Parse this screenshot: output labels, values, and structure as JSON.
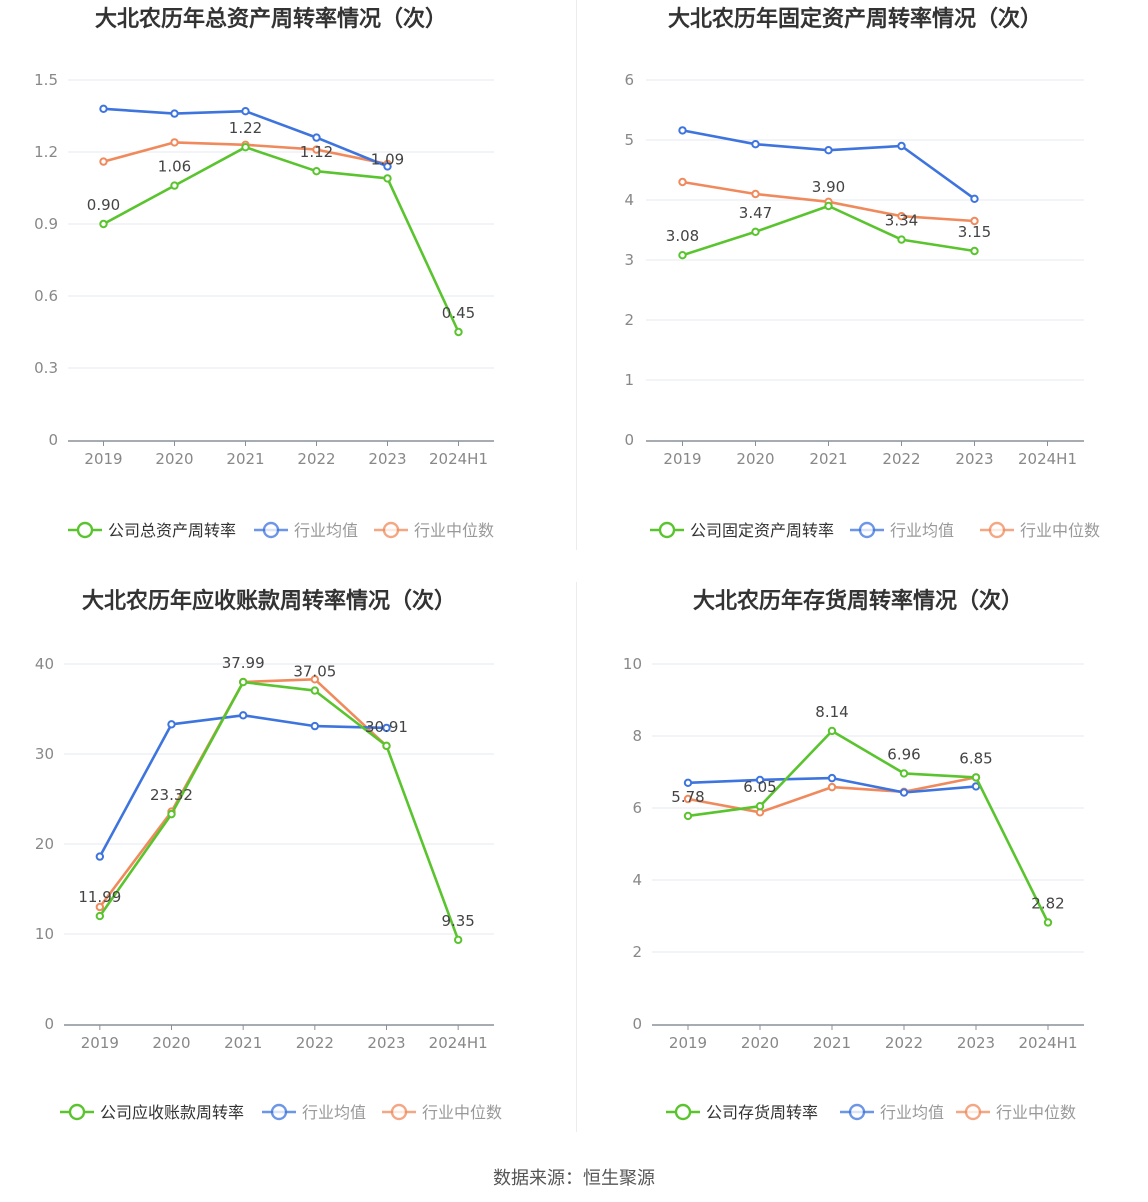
{
  "colors": {
    "company": "#5ac42e",
    "avg": "#3e74de",
    "median": "#f08a5d",
    "grid": "#e6e9f2",
    "axis": "#8a8f99",
    "tick": "#888888",
    "title": "#333333",
    "label": "#444444"
  },
  "chart_data": [
    {
      "type": "line",
      "title": "大北农历年总资产周转率情况（次）",
      "categories": [
        "2019",
        "2020",
        "2021",
        "2022",
        "2023",
        "2024H1"
      ],
      "yticks": [
        "0",
        "0.3",
        "0.6",
        "0.9",
        "1.2",
        "1.5"
      ],
      "ylim": [
        0,
        1.5
      ],
      "series": [
        {
          "name": "公司总资产周转率",
          "role": "company",
          "values": [
            0.9,
            1.06,
            1.22,
            1.12,
            1.09,
            0.45
          ],
          "labels": [
            "0.90",
            "1.06",
            "1.22",
            "1.12",
            "1.09",
            "0.45"
          ]
        },
        {
          "name": "行业均值",
          "role": "avg",
          "values": [
            1.38,
            1.36,
            1.37,
            1.26,
            1.14,
            null
          ]
        },
        {
          "name": "行业中位数",
          "role": "median",
          "values": [
            1.16,
            1.24,
            1.23,
            1.21,
            1.15,
            null
          ]
        }
      ]
    },
    {
      "type": "line",
      "title": "大北农历年固定资产周转率情况（次）",
      "categories": [
        "2019",
        "2020",
        "2021",
        "2022",
        "2023",
        "2024H1"
      ],
      "yticks": [
        "0",
        "1",
        "2",
        "3",
        "4",
        "5",
        "6"
      ],
      "ylim": [
        0,
        6
      ],
      "series": [
        {
          "name": "公司固定资产周转率",
          "role": "company",
          "values": [
            3.08,
            3.47,
            3.9,
            3.34,
            3.15,
            null
          ],
          "labels": [
            "3.08",
            "3.47",
            "3.90",
            "3.34",
            "3.15",
            null
          ]
        },
        {
          "name": "行业均值",
          "role": "avg",
          "values": [
            5.16,
            4.93,
            4.83,
            4.9,
            4.02,
            null
          ]
        },
        {
          "name": "行业中位数",
          "role": "median",
          "values": [
            4.3,
            4.1,
            3.97,
            3.73,
            3.65,
            null
          ]
        }
      ]
    },
    {
      "type": "line",
      "title": "大北农历年应收账款周转率情况（次）",
      "categories": [
        "2019",
        "2020",
        "2021",
        "2022",
        "2023",
        "2024H1"
      ],
      "yticks": [
        "0",
        "10",
        "20",
        "30",
        "40"
      ],
      "ylim": [
        0,
        40
      ],
      "series": [
        {
          "name": "公司应收账款周转率",
          "role": "company",
          "values": [
            11.99,
            23.32,
            37.99,
            37.05,
            30.91,
            9.35
          ],
          "labels": [
            "11.99",
            "23.32",
            "37.99",
            "37.05",
            "30.91",
            "9.35"
          ]
        },
        {
          "name": "行业均值",
          "role": "avg",
          "values": [
            18.6,
            33.3,
            34.3,
            33.1,
            32.9,
            null
          ]
        },
        {
          "name": "行业中位数",
          "role": "median",
          "values": [
            13.0,
            23.6,
            38.0,
            38.3,
            30.9,
            null
          ]
        }
      ]
    },
    {
      "type": "line",
      "title": "大北农历年存货周转率情况（次）",
      "categories": [
        "2019",
        "2020",
        "2021",
        "2022",
        "2023",
        "2024H1"
      ],
      "yticks": [
        "0",
        "2",
        "4",
        "6",
        "8",
        "10"
      ],
      "ylim": [
        0,
        10
      ],
      "series": [
        {
          "name": "公司存货周转率",
          "role": "company",
          "values": [
            5.78,
            6.05,
            8.14,
            6.96,
            6.85,
            2.82
          ],
          "labels": [
            "5.78",
            "6.05",
            "8.14",
            "6.96",
            "6.85",
            "2.82"
          ]
        },
        {
          "name": "行业均值",
          "role": "avg",
          "values": [
            6.7,
            6.78,
            6.83,
            6.43,
            6.6,
            null
          ]
        },
        {
          "name": "行业中位数",
          "role": "median",
          "values": [
            6.25,
            5.88,
            6.58,
            6.45,
            6.85,
            null
          ]
        }
      ]
    }
  ],
  "footer": "数据来源：恒生聚源"
}
